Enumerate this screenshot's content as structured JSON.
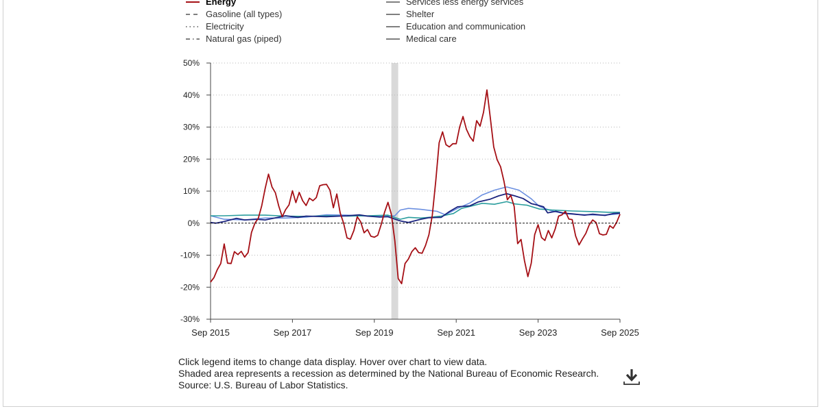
{
  "legend": {
    "left": [
      {
        "label": "Energy",
        "color": "#a50f15",
        "dash": "solid",
        "active": true
      },
      {
        "label": "Gasoline (all types)",
        "color": "#555555",
        "dash": "dashed",
        "active": false
      },
      {
        "label": "Electricity",
        "color": "#555555",
        "dash": "dotted",
        "active": false
      },
      {
        "label": "Natural gas (piped)",
        "color": "#555555",
        "dash": "dashdot",
        "active": false
      }
    ],
    "right": [
      {
        "label": "Services less energy services",
        "color": "#555555",
        "dash": "solid",
        "active": false
      },
      {
        "label": "Shelter",
        "color": "#555555",
        "dash": "solid",
        "active": false
      },
      {
        "label": "Education and communication",
        "color": "#555555",
        "dash": "solid",
        "active": false
      },
      {
        "label": "Medical care",
        "color": "#555555",
        "dash": "solid",
        "active": false
      }
    ]
  },
  "notes": {
    "line1": "Click legend items to change data display. Hover over chart to view data.",
    "line2": "Shaded area represents a recession as determined by the National Bureau of Economic Research.",
    "line3": "Source: U.S. Bureau of Labor Statistics."
  },
  "download_icon": "download-icon",
  "chart_data": {
    "type": "line",
    "title": "",
    "xlabel": "",
    "ylabel": "",
    "x_start": "2015-09",
    "x_end": "2025-09",
    "xlim": [
      2015.667,
      2025.667
    ],
    "ylim": [
      -30,
      50
    ],
    "y_ticks": [
      50,
      40,
      30,
      20,
      10,
      0,
      -10,
      -20,
      -30
    ],
    "y_tick_labels": [
      "50%",
      "40%",
      "30%",
      "20%",
      "10%",
      "0%",
      "-10%",
      "-20%",
      "-30%"
    ],
    "x_ticks": [
      2015.667,
      2017.667,
      2019.667,
      2021.667,
      2023.667,
      2025.667
    ],
    "x_tick_labels": [
      "Sep 2015",
      "Sep 2017",
      "Sep 2019",
      "Sep 2021",
      "Sep 2023",
      "Sep 2025"
    ],
    "grid": "horizontal-dotted",
    "zero_line": "dashed",
    "recession": [
      2020.083,
      2020.25
    ],
    "series": [
      {
        "name": "Services less energy services (light blue)",
        "color": "#6b8fe0",
        "width": 1.6,
        "points": [
          [
            2015.667,
            2.3
          ],
          [
            2016.0,
            1.2
          ],
          [
            2016.5,
            1.0
          ],
          [
            2017.0,
            1.6
          ],
          [
            2017.5,
            1.6
          ],
          [
            2018.0,
            1.9
          ],
          [
            2018.5,
            2.6
          ],
          [
            2019.0,
            2.5
          ],
          [
            2019.5,
            2.2
          ],
          [
            2020.0,
            2.3
          ],
          [
            2020.167,
            2.3
          ],
          [
            2020.3,
            4.1
          ],
          [
            2020.5,
            4.6
          ],
          [
            2020.8,
            4.3
          ],
          [
            2021.0,
            4.0
          ],
          [
            2021.2,
            3.7
          ],
          [
            2021.4,
            2.6
          ],
          [
            2021.7,
            4.6
          ],
          [
            2022.0,
            6.3
          ],
          [
            2022.3,
            8.8
          ],
          [
            2022.6,
            10.3
          ],
          [
            2022.9,
            11.3
          ],
          [
            2023.2,
            10.3
          ],
          [
            2023.5,
            7.6
          ],
          [
            2023.7,
            5.2
          ],
          [
            2024.0,
            3.8
          ],
          [
            2024.3,
            3.0
          ],
          [
            2024.6,
            2.7
          ],
          [
            2024.9,
            2.6
          ],
          [
            2025.2,
            2.5
          ],
          [
            2025.5,
            2.7
          ],
          [
            2025.667,
            3.0
          ]
        ]
      },
      {
        "name": "Medical care (teal)",
        "color": "#2a9d9d",
        "width": 1.6,
        "points": [
          [
            2015.667,
            2.3
          ],
          [
            2016.0,
            2.3
          ],
          [
            2016.5,
            2.5
          ],
          [
            2017.0,
            2.5
          ],
          [
            2017.5,
            2.2
          ],
          [
            2018.0,
            2.1
          ],
          [
            2018.5,
            2.3
          ],
          [
            2019.0,
            2.2
          ],
          [
            2019.5,
            2.3
          ],
          [
            2020.0,
            2.5
          ],
          [
            2020.3,
            1.2
          ],
          [
            2020.5,
            1.8
          ],
          [
            2020.8,
            1.6
          ],
          [
            2021.0,
            1.8
          ],
          [
            2021.3,
            2.2
          ],
          [
            2021.6,
            3.0
          ],
          [
            2021.8,
            4.6
          ],
          [
            2022.0,
            5.2
          ],
          [
            2022.3,
            6.2
          ],
          [
            2022.6,
            5.9
          ],
          [
            2022.9,
            6.7
          ],
          [
            2023.1,
            6.0
          ],
          [
            2023.4,
            5.6
          ],
          [
            2023.7,
            4.4
          ],
          [
            2024.0,
            4.1
          ],
          [
            2024.5,
            3.8
          ],
          [
            2025.0,
            3.6
          ],
          [
            2025.4,
            3.4
          ],
          [
            2025.667,
            3.4
          ]
        ]
      },
      {
        "name": "Shelter (navy)",
        "color": "#1a237e",
        "width": 1.8,
        "points": [
          [
            2015.667,
            0.2
          ],
          [
            2015.8,
            0.0
          ],
          [
            2016.0,
            0.5
          ],
          [
            2016.3,
            1.5
          ],
          [
            2016.5,
            1.0
          ],
          [
            2016.8,
            1.2
          ],
          [
            2017.0,
            1.0
          ],
          [
            2017.5,
            2.3
          ],
          [
            2017.8,
            1.8
          ],
          [
            2018.0,
            2.2
          ],
          [
            2018.5,
            2.0
          ],
          [
            2019.0,
            2.3
          ],
          [
            2019.3,
            2.6
          ],
          [
            2019.5,
            2.2
          ],
          [
            2019.8,
            1.9
          ],
          [
            2020.0,
            2.0
          ],
          [
            2020.3,
            0.7
          ],
          [
            2020.5,
            0.2
          ],
          [
            2020.8,
            1.2
          ],
          [
            2021.0,
            1.7
          ],
          [
            2021.3,
            1.8
          ],
          [
            2021.5,
            3.6
          ],
          [
            2021.7,
            5.1
          ],
          [
            2022.0,
            5.4
          ],
          [
            2022.2,
            6.6
          ],
          [
            2022.5,
            7.5
          ],
          [
            2022.7,
            8.5
          ],
          [
            2022.9,
            9.2
          ],
          [
            2023.1,
            8.5
          ],
          [
            2023.3,
            7.7
          ],
          [
            2023.5,
            6.1
          ],
          [
            2023.6,
            5.8
          ],
          [
            2023.8,
            5.1
          ],
          [
            2023.9,
            3.2
          ],
          [
            2024.1,
            3.7
          ],
          [
            2024.3,
            3.1
          ],
          [
            2024.5,
            2.9
          ],
          [
            2024.8,
            2.5
          ],
          [
            2025.0,
            2.8
          ],
          [
            2025.3,
            2.4
          ],
          [
            2025.5,
            3.0
          ],
          [
            2025.667,
            3.1
          ]
        ]
      },
      {
        "name": "Energy",
        "color": "#a50f15",
        "width": 1.8,
        "points": [
          [
            2015.667,
            -18.4
          ],
          [
            2015.75,
            -17.0
          ],
          [
            2015.833,
            -14.5
          ],
          [
            2015.917,
            -12.6
          ],
          [
            2016.0,
            -6.5
          ],
          [
            2016.083,
            -12.5
          ],
          [
            2016.167,
            -12.6
          ],
          [
            2016.25,
            -8.9
          ],
          [
            2016.333,
            -9.8
          ],
          [
            2016.417,
            -8.8
          ],
          [
            2016.5,
            -10.6
          ],
          [
            2016.583,
            -9.2
          ],
          [
            2016.667,
            -2.9
          ],
          [
            2016.75,
            0.0
          ],
          [
            2016.833,
            1.5
          ],
          [
            2016.917,
            5.4
          ],
          [
            2017.0,
            10.8
          ],
          [
            2017.083,
            15.3
          ],
          [
            2017.167,
            11.3
          ],
          [
            2017.25,
            9.5
          ],
          [
            2017.333,
            5.3
          ],
          [
            2017.417,
            2.0
          ],
          [
            2017.5,
            4.2
          ],
          [
            2017.583,
            5.7
          ],
          [
            2017.667,
            10.1
          ],
          [
            2017.75,
            6.4
          ],
          [
            2017.833,
            9.6
          ],
          [
            2017.917,
            7.0
          ],
          [
            2018.0,
            5.5
          ],
          [
            2018.083,
            7.8
          ],
          [
            2018.167,
            7.0
          ],
          [
            2018.25,
            8.0
          ],
          [
            2018.333,
            11.7
          ],
          [
            2018.417,
            12.0
          ],
          [
            2018.5,
            12.1
          ],
          [
            2018.583,
            10.3
          ],
          [
            2018.667,
            4.8
          ],
          [
            2018.75,
            9.1
          ],
          [
            2018.833,
            3.2
          ],
          [
            2018.917,
            0.0
          ],
          [
            2019.0,
            -4.6
          ],
          [
            2019.083,
            -5.0
          ],
          [
            2019.167,
            -2.3
          ],
          [
            2019.25,
            2.0
          ],
          [
            2019.333,
            0.4
          ],
          [
            2019.417,
            -3.0
          ],
          [
            2019.5,
            -2.0
          ],
          [
            2019.583,
            -4.1
          ],
          [
            2019.667,
            -4.4
          ],
          [
            2019.75,
            -3.8
          ],
          [
            2019.833,
            -0.5
          ],
          [
            2019.917,
            3.4
          ],
          [
            2020.0,
            6.5
          ],
          [
            2020.083,
            2.8
          ],
          [
            2020.167,
            -5.5
          ],
          [
            2020.25,
            -17.3
          ],
          [
            2020.333,
            -18.9
          ],
          [
            2020.417,
            -12.6
          ],
          [
            2020.5,
            -11.2
          ],
          [
            2020.583,
            -8.9
          ],
          [
            2020.667,
            -7.7
          ],
          [
            2020.75,
            -9.2
          ],
          [
            2020.833,
            -9.4
          ],
          [
            2020.917,
            -7.0
          ],
          [
            2021.0,
            -3.6
          ],
          [
            2021.083,
            2.4
          ],
          [
            2021.167,
            13.2
          ],
          [
            2021.25,
            25.1
          ],
          [
            2021.333,
            28.5
          ],
          [
            2021.417,
            24.5
          ],
          [
            2021.5,
            23.8
          ],
          [
            2021.583,
            24.8
          ],
          [
            2021.667,
            24.8
          ],
          [
            2021.75,
            30.0
          ],
          [
            2021.833,
            33.3
          ],
          [
            2021.917,
            29.3
          ],
          [
            2022.0,
            27.0
          ],
          [
            2022.083,
            25.6
          ],
          [
            2022.167,
            32.0
          ],
          [
            2022.25,
            30.3
          ],
          [
            2022.333,
            34.6
          ],
          [
            2022.417,
            41.6
          ],
          [
            2022.5,
            32.9
          ],
          [
            2022.583,
            23.8
          ],
          [
            2022.667,
            19.8
          ],
          [
            2022.75,
            17.6
          ],
          [
            2022.833,
            13.1
          ],
          [
            2022.917,
            7.3
          ],
          [
            2023.0,
            8.7
          ],
          [
            2023.083,
            5.2
          ],
          [
            2023.167,
            -6.4
          ],
          [
            2023.25,
            -5.1
          ],
          [
            2023.333,
            -11.7
          ],
          [
            2023.417,
            -16.7
          ],
          [
            2023.5,
            -12.5
          ],
          [
            2023.583,
            -3.6
          ],
          [
            2023.667,
            -0.5
          ],
          [
            2023.75,
            -4.5
          ],
          [
            2023.833,
            -5.4
          ],
          [
            2023.917,
            -2.3
          ],
          [
            2024.0,
            -4.6
          ],
          [
            2024.083,
            -1.9
          ],
          [
            2024.167,
            2.2
          ],
          [
            2024.25,
            2.6
          ],
          [
            2024.333,
            3.7
          ],
          [
            2024.417,
            1.3
          ],
          [
            2024.5,
            1.1
          ],
          [
            2024.583,
            -4.0
          ],
          [
            2024.667,
            -6.8
          ],
          [
            2024.75,
            -4.9
          ],
          [
            2024.833,
            -3.2
          ],
          [
            2024.917,
            -0.5
          ],
          [
            2025.0,
            1.0
          ],
          [
            2025.083,
            0.2
          ],
          [
            2025.167,
            -3.3
          ],
          [
            2025.25,
            -3.7
          ],
          [
            2025.333,
            -3.5
          ],
          [
            2025.417,
            -0.8
          ],
          [
            2025.5,
            -1.6
          ],
          [
            2025.583,
            0.2
          ],
          [
            2025.667,
            2.8
          ]
        ]
      }
    ]
  }
}
